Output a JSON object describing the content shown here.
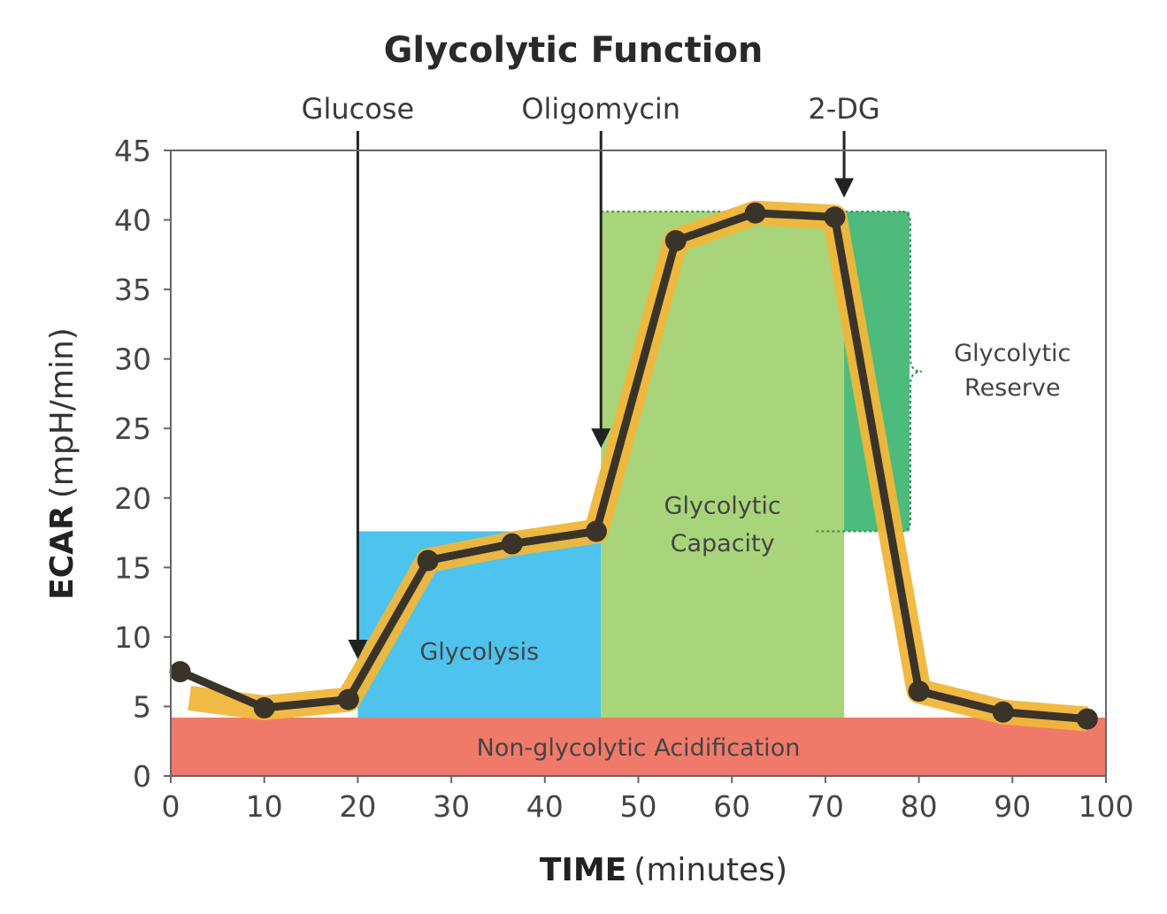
{
  "chart_data": {
    "type": "line",
    "title": "Glycolytic Function",
    "xlabel_bold": "TIME",
    "xlabel_rest": "(minutes)",
    "ylabel_bold": "ECAR",
    "ylabel_rest": "(mpH/min)",
    "xlim": [
      0,
      100
    ],
    "ylim": [
      0,
      45
    ],
    "xticks": [
      "0",
      "10",
      "20",
      "30",
      "40",
      "50",
      "60",
      "70",
      "80",
      "90",
      "100"
    ],
    "yticks": [
      "0",
      "5",
      "10",
      "15",
      "20",
      "25",
      "30",
      "35",
      "40",
      "45"
    ],
    "series": [
      {
        "x": [
          1,
          10,
          19,
          27.5,
          36.5,
          45.5,
          54,
          62.5,
          71,
          80,
          89,
          98
        ],
        "y": [
          7.5,
          4.9,
          5.5,
          15.5,
          16.7,
          17.6,
          38.5,
          40.5,
          40.2,
          6.1,
          4.6,
          4.1
        ]
      }
    ],
    "injections": [
      {
        "label": "Glucose",
        "x": 20
      },
      {
        "label": "Oligomycin",
        "x": 46
      },
      {
        "label": "2-DG",
        "x": 72
      }
    ],
    "regions": {
      "non_glycolytic": {
        "label": "Non-glycolytic Acidification",
        "x": [
          0,
          100
        ],
        "y": [
          0,
          4.2
        ],
        "color": "#f07a6a"
      },
      "glycolysis": {
        "label": "Glycolysis",
        "x": [
          20,
          46
        ],
        "y": [
          4.2,
          17.6
        ],
        "color": "#4ec3ee"
      },
      "capacity": {
        "label_line1": "Glycolytic",
        "label_line2": "Capacity",
        "x": [
          46,
          72
        ],
        "y": [
          4.2,
          40.6
        ],
        "color": "#a8d57a"
      },
      "reserve": {
        "label_line1": "Glycolytic",
        "label_line2": "Reserve",
        "x": [
          72,
          79
        ],
        "y": [
          17.6,
          40.6
        ],
        "color": "#4dbb7b"
      }
    },
    "colors": {
      "line": "#3a3328",
      "halo": "#f0b63a",
      "frame": "#666666"
    }
  }
}
